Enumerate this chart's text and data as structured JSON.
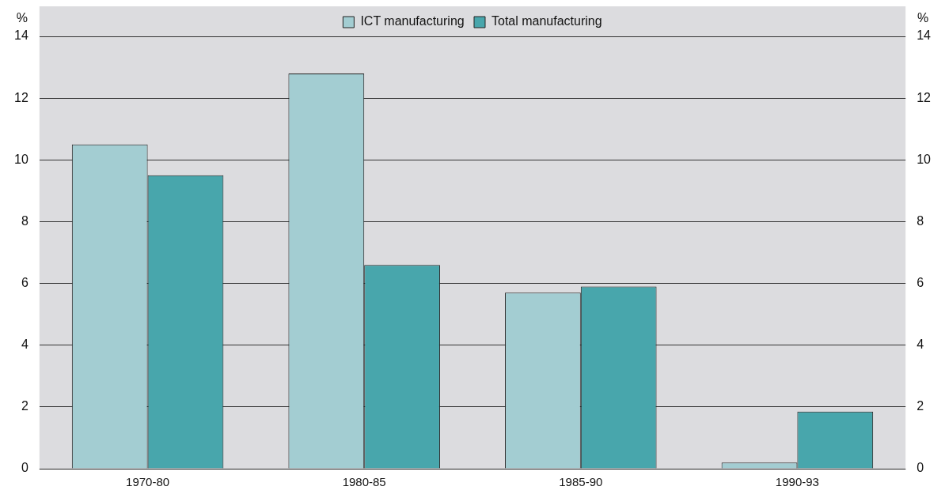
{
  "chart_data": {
    "type": "bar",
    "ylabel": "%",
    "y2label": "%",
    "categories": [
      "1970-80",
      "1980-85",
      "1985-90",
      "1990-93"
    ],
    "series": [
      {
        "name": "ICT manufacturing",
        "color": "#a3cdd2",
        "values": [
          10.5,
          12.8,
          5.7,
          0.2
        ]
      },
      {
        "name": "Total manufacturing",
        "color": "#48a6ac",
        "values": [
          9.5,
          6.6,
          5.9,
          1.85
        ]
      }
    ],
    "ylim": [
      0,
      14
    ],
    "yticks": [
      0,
      2,
      4,
      6,
      8,
      10,
      12,
      14
    ],
    "y2lim": [
      0,
      14
    ],
    "y2ticks": [
      0,
      2,
      4,
      6,
      8,
      10,
      12,
      14
    ],
    "grid": "y",
    "legend": "top"
  }
}
